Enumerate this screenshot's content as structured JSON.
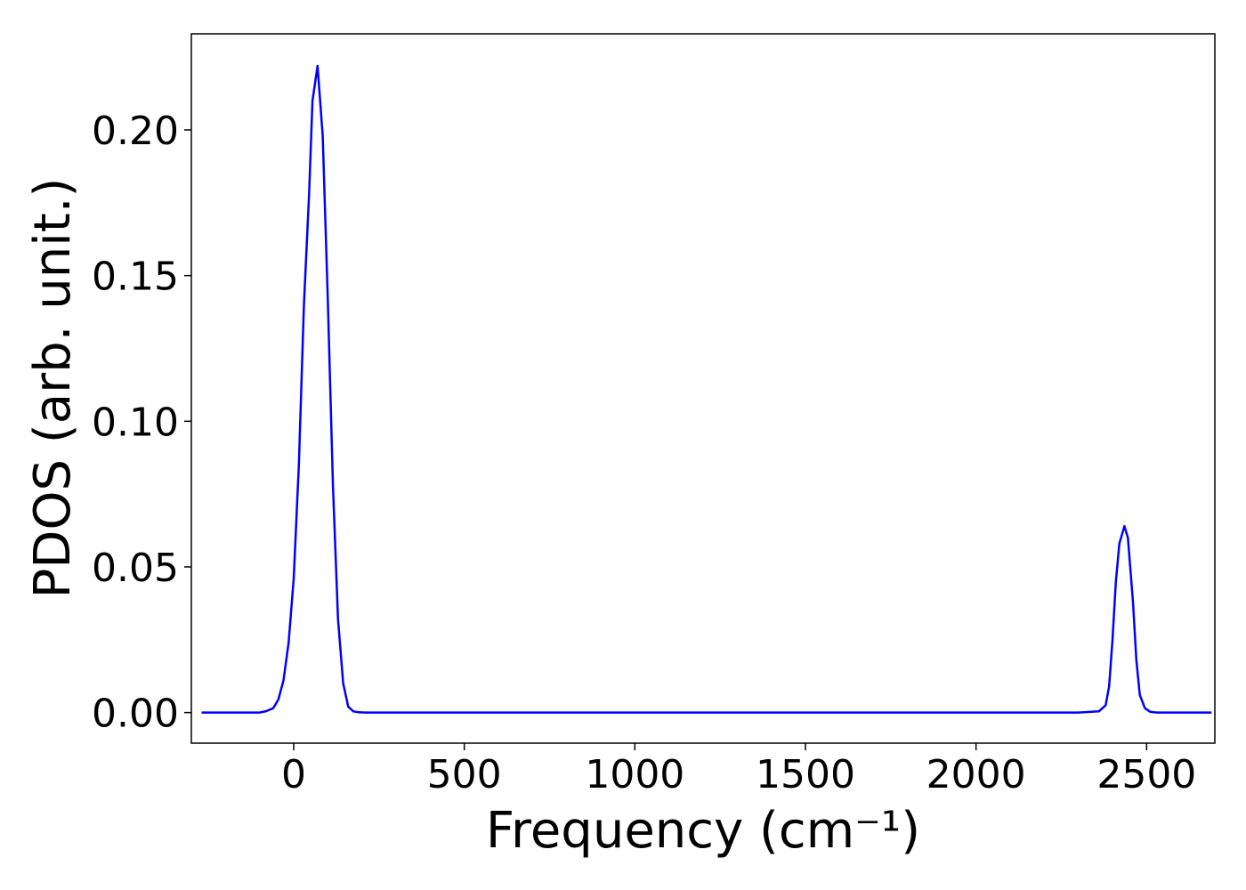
{
  "chart_data": {
    "type": "line",
    "title": "",
    "xlabel": "Frequency (cm⁻¹)",
    "ylabel": "PDOS (arb. unit.)",
    "xlim": [
      -300,
      2700
    ],
    "ylim": [
      -0.0105,
      0.233
    ],
    "xticks": [
      0,
      500,
      1000,
      1500,
      2000,
      2500
    ],
    "xtick_labels": [
      "0",
      "500",
      "1000",
      "1500",
      "2000",
      "2500"
    ],
    "yticks": [
      0.0,
      0.05,
      0.1,
      0.15,
      0.2
    ],
    "ytick_labels": [
      "0.00",
      "0.05",
      "0.10",
      "0.15",
      "0.20"
    ],
    "grid": false,
    "legend": "none",
    "series": [
      {
        "color": "#0000ff",
        "x": [
          -270,
          -100,
          -80,
          -60,
          -45,
          -30,
          -15,
          0,
          15,
          30,
          45,
          55,
          70,
          85,
          100,
          115,
          130,
          145,
          160,
          175,
          190,
          210,
          300,
          500,
          1000,
          1500,
          2000,
          2300,
          2360,
          2380,
          2390,
          2400,
          2410,
          2420,
          2435,
          2445,
          2460,
          2470,
          2480,
          2495,
          2510,
          2530,
          2690
        ],
        "y": [
          0.0,
          0.0,
          0.0005,
          0.0015,
          0.0045,
          0.011,
          0.024,
          0.046,
          0.085,
          0.14,
          0.178,
          0.21,
          0.222,
          0.198,
          0.142,
          0.078,
          0.032,
          0.01,
          0.002,
          0.0004,
          0.0001,
          0.0,
          0.0,
          0.0,
          0.0,
          0.0,
          0.0,
          0.0,
          0.0004,
          0.0025,
          0.009,
          0.025,
          0.045,
          0.058,
          0.064,
          0.06,
          0.038,
          0.018,
          0.006,
          0.0015,
          0.0003,
          0.0,
          0.0
        ]
      }
    ]
  }
}
